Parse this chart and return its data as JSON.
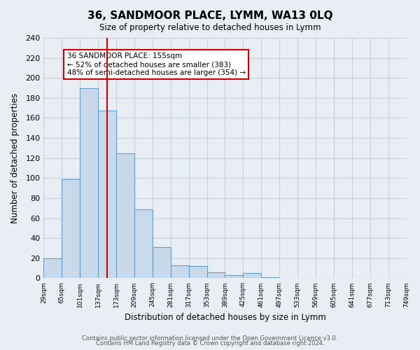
{
  "title": "36, SANDMOOR PLACE, LYMM, WA13 0LQ",
  "subtitle": "Size of property relative to detached houses in Lymm",
  "xlabel": "Distribution of detached houses by size in Lymm",
  "ylabel": "Number of detached properties",
  "footer_lines": [
    "Contains HM Land Registry data © Crown copyright and database right 2024.",
    "Contains public sector information licensed under the Open Government Licence v3.0."
  ],
  "bin_labels": [
    "29sqm",
    "65sqm",
    "101sqm",
    "137sqm",
    "173sqm",
    "209sqm",
    "245sqm",
    "281sqm",
    "317sqm",
    "353sqm",
    "389sqm",
    "425sqm",
    "461sqm",
    "497sqm",
    "533sqm",
    "569sqm",
    "605sqm",
    "641sqm",
    "677sqm",
    "713sqm",
    "749sqm"
  ],
  "bar_values": [
    20,
    99,
    190,
    167,
    125,
    69,
    31,
    13,
    12,
    6,
    3,
    5,
    1,
    0,
    0,
    0,
    0,
    0,
    0,
    0
  ],
  "bar_color": "#c9d9ec",
  "bar_edge_color": "#6a9cc9",
  "grid_color": "#c8d0da",
  "background_color": "#e8eef4",
  "property_size": 155,
  "property_bin_index": 3,
  "red_line_color": "#cc0000",
  "annotation_text": "36 SANDMOOR PLACE: 155sqm\n← 52% of detached houses are smaller (383)\n48% of semi-detached houses are larger (354) →",
  "annotation_box_color": "#ffffff",
  "annotation_box_edge_color": "#cc0000",
  "ylim": [
    0,
    240
  ],
  "yticks": [
    0,
    20,
    40,
    60,
    80,
    100,
    120,
    140,
    160,
    180,
    200,
    220,
    240
  ],
  "bin_width": 36
}
